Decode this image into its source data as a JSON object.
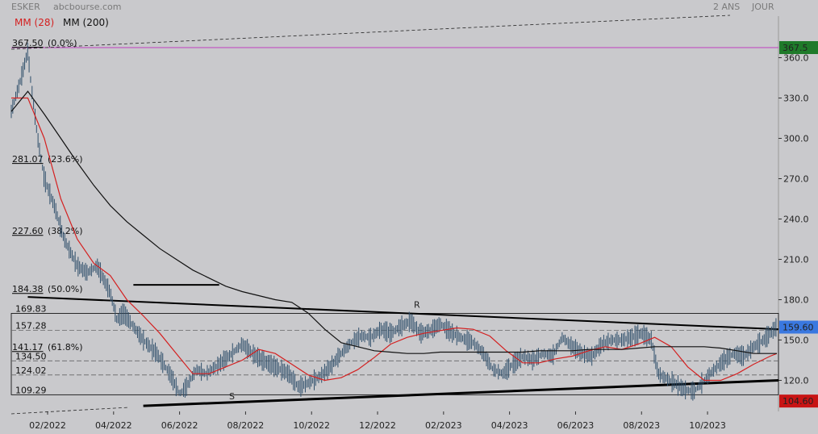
{
  "header": {
    "symbol": "ESKER",
    "source": "abcbourse.com",
    "period": "2 ANS",
    "interval": "JOUR"
  },
  "legend": [
    {
      "label": "MM (28)",
      "color": "#d42020"
    },
    {
      "label": "MM (200)",
      "color": "#111111"
    }
  ],
  "colors": {
    "background": "#c9c9cc",
    "price": "#2f4f6b",
    "ma28": "#d42020",
    "ma200": "#111111",
    "fib_label": "#8a2fa8",
    "last_price_badge": "#3a78e0",
    "high_badge": "#1f7a2a",
    "low_badge": "#c81414",
    "high_line": "#c040c0"
  },
  "chart_data": {
    "type": "line",
    "title": "ESKER",
    "xlabel": "",
    "ylabel": "",
    "ylim": [
      98,
      378
    ],
    "y_ticks": [
      "120.0",
      "150.0",
      "180.0",
      "210.0",
      "240.0",
      "270.0",
      "300.0",
      "330.0",
      "360.0"
    ],
    "x_ticks": [
      "02/2022",
      "04/2022",
      "06/2022",
      "08/2022",
      "10/2022",
      "12/2022",
      "02/2023",
      "04/2023",
      "06/2023",
      "08/2023",
      "10/2023"
    ],
    "x_tick_positions": [
      1.1,
      3.1,
      5.1,
      7.1,
      9.1,
      11.1,
      13.1,
      15.1,
      17.1,
      19.1,
      21.1
    ],
    "xlim": [
      0,
      23.25
    ],
    "grid": false,
    "legend_position": "top-left",
    "price_series": {
      "name": "ESKER",
      "x": [
        0.0,
        0.3,
        0.5,
        0.6,
        0.8,
        1.0,
        1.3,
        1.6,
        2.0,
        2.3,
        2.6,
        3.0,
        3.2,
        3.4,
        3.7,
        4.0,
        4.4,
        4.8,
        5.1,
        5.3,
        5.6,
        5.9,
        6.2,
        6.6,
        7.0,
        7.3,
        7.6,
        8.0,
        8.4,
        8.7,
        9.0,
        9.3,
        9.6,
        10.0,
        10.3,
        10.6,
        10.9,
        11.2,
        11.5,
        11.8,
        12.1,
        12.4,
        12.7,
        13.0,
        13.3,
        13.6,
        14.0,
        14.3,
        14.6,
        14.9,
        15.2,
        15.5,
        15.8,
        16.1,
        16.4,
        16.7,
        17.0,
        17.3,
        17.6,
        17.9,
        18.2,
        18.5,
        18.8,
        19.1,
        19.4,
        19.6,
        19.8,
        20.1,
        20.4,
        20.7,
        21.0,
        21.3,
        21.6,
        21.9,
        22.2,
        22.5,
        22.8,
        23.0,
        23.2
      ],
      "values": [
        320,
        345,
        365,
        340,
        300,
        270,
        250,
        225,
        205,
        200,
        205,
        185,
        165,
        170,
        160,
        150,
        140,
        125,
        110,
        115,
        128,
        125,
        130,
        138,
        147,
        140,
        135,
        130,
        125,
        115,
        118,
        122,
        128,
        140,
        148,
        153,
        152,
        158,
        155,
        160,
        164,
        155,
        157,
        162,
        156,
        152,
        148,
        140,
        128,
        125,
        132,
        138,
        135,
        140,
        138,
        152,
        145,
        140,
        138,
        147,
        150,
        150,
        152,
        155,
        150,
        125,
        122,
        118,
        113,
        112,
        120,
        128,
        135,
        140,
        138,
        145,
        150,
        155,
        160
      ]
    },
    "series": [
      {
        "name": "MM (28)",
        "x": [
          0.0,
          0.5,
          1.0,
          1.5,
          2.0,
          2.5,
          3.0,
          3.5,
          4.0,
          4.5,
          5.0,
          5.5,
          6.0,
          6.5,
          7.0,
          7.5,
          8.0,
          8.5,
          9.0,
          9.5,
          10.0,
          10.5,
          11.0,
          11.5,
          12.0,
          12.5,
          13.0,
          13.5,
          14.0,
          14.5,
          15.0,
          15.5,
          16.0,
          16.5,
          17.0,
          17.5,
          18.0,
          18.5,
          19.0,
          19.5,
          20.0,
          20.5,
          21.0,
          21.5,
          22.0,
          22.5,
          23.0,
          23.2
        ],
        "values": [
          330,
          330,
          300,
          255,
          225,
          207,
          198,
          180,
          168,
          155,
          140,
          125,
          125,
          130,
          135,
          143,
          140,
          132,
          124,
          120,
          122,
          128,
          137,
          147,
          152,
          155,
          157,
          159,
          158,
          153,
          142,
          133,
          133,
          136,
          138,
          142,
          145,
          143,
          147,
          152,
          145,
          130,
          120,
          120,
          125,
          132,
          138,
          140
        ]
      },
      {
        "name": "MM (200)",
        "x": [
          0.0,
          0.5,
          1.0,
          1.5,
          2.0,
          2.5,
          3.0,
          3.5,
          4.0,
          4.5,
          5.0,
          5.5,
          6.0,
          6.5,
          7.0,
          7.5,
          8.0,
          8.5,
          9.0,
          9.5,
          10.0,
          10.5,
          11.0,
          11.5,
          12.0,
          12.5,
          13.0,
          13.5,
          14.0,
          14.5,
          15.0,
          15.5,
          16.0,
          16.5,
          17.0,
          17.5,
          18.0,
          18.5,
          19.0,
          19.5,
          20.0,
          20.5,
          21.0,
          21.5,
          22.0,
          22.5,
          23.0,
          23.2
        ],
        "values": [
          320,
          335,
          318,
          300,
          282,
          265,
          250,
          238,
          228,
          218,
          210,
          202,
          196,
          190,
          186,
          183,
          180,
          178,
          170,
          158,
          148,
          145,
          142,
          141,
          140,
          140,
          141,
          141,
          141,
          141,
          141,
          141,
          142,
          142,
          142,
          143,
          143,
          143,
          144,
          145,
          145,
          145,
          145,
          144,
          142,
          140,
          140,
          140
        ]
      }
    ],
    "fib_levels": [
      {
        "value": 367.5,
        "label": "367.50",
        "pct": "(0.0%)"
      },
      {
        "value": 281.07,
        "label": "281.07",
        "pct": "(23.6%)"
      },
      {
        "value": 227.6,
        "label": "227.60",
        "pct": "(38.2%)"
      },
      {
        "value": 184.38,
        "label": "184.38",
        "pct": "(50.0%)"
      },
      {
        "value": 141.17,
        "label": "141.17",
        "pct": "(61.8%)"
      }
    ],
    "hline_labels": [
      {
        "value": 169.83,
        "label": "169.83",
        "color": "#8a2fa8"
      },
      {
        "value": 157.28,
        "label": "157.28",
        "color": "#555555"
      },
      {
        "value": 134.5,
        "label": "134.50",
        "color": "#555555"
      },
      {
        "value": 124.02,
        "label": "124.02",
        "color": "#555555"
      },
      {
        "value": 109.29,
        "label": "109.29",
        "color": "#8a2fa8"
      }
    ],
    "badges": [
      {
        "value": 367.5,
        "label": "367.5",
        "kind": "high"
      },
      {
        "value": 159.6,
        "label": "159.60",
        "kind": "last"
      },
      {
        "value": 104.6,
        "label": "104.60",
        "kind": "low"
      }
    ],
    "annotations": [
      {
        "text": "R",
        "x": 12.2,
        "y": 174
      },
      {
        "text": "S",
        "x": 6.6,
        "y": 106
      }
    ],
    "trendlines": [
      {
        "name": "resistance",
        "x1": 0.5,
        "y1": 182,
        "x2": 23.25,
        "y2": 158
      },
      {
        "name": "support",
        "x1": 4.0,
        "y1": 101,
        "x2": 23.25,
        "y2": 120
      },
      {
        "name": "horizontal-segment",
        "x1": 3.7,
        "y1": 191,
        "x2": 6.3,
        "y2": 191
      }
    ]
  }
}
